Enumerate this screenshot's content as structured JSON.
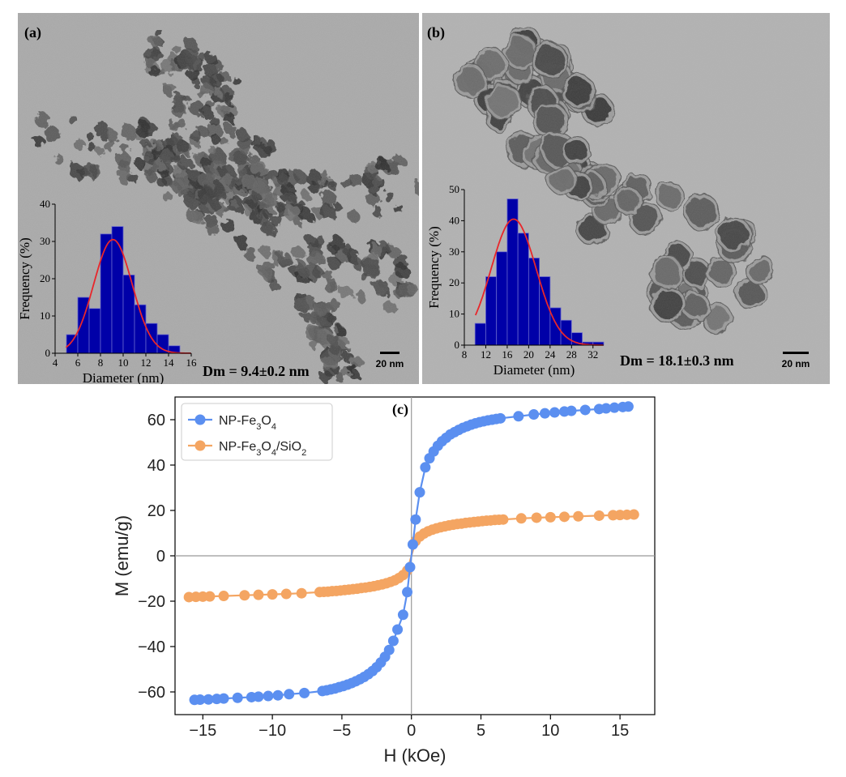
{
  "colors": {
    "series_fe3o4": "#5b8ff0",
    "series_fe3o4_sio2": "#f4a562",
    "histogram_bar": "#0000a8",
    "fit_curve": "#e8262b"
  },
  "panel_a": {
    "label": "(a)",
    "dm_text": "Dm = 9.4±0.2 nm",
    "scale_bar": "20 nm"
  },
  "panel_b": {
    "label": "(b)",
    "dm_text": "Dm = 18.1±0.3 nm",
    "scale_bar": "20 nm"
  },
  "panel_c": {
    "label": "(c)"
  },
  "chart_data": [
    {
      "id": "hist_a",
      "type": "bar",
      "xlabel": "Diameter (nm)",
      "ylabel": "Frequency (%)",
      "xlim": [
        4,
        16
      ],
      "ylim": [
        0,
        40
      ],
      "xticks": [
        4,
        6,
        8,
        10,
        12,
        14,
        16
      ],
      "yticks": [
        0,
        10,
        20,
        30,
        40
      ],
      "bin_width": 1,
      "bin_starts": [
        5,
        6,
        7,
        8,
        9,
        10,
        11,
        12,
        13,
        14
      ],
      "values": [
        5,
        15,
        12,
        32,
        34,
        21,
        13,
        8,
        5,
        2
      ],
      "fit": {
        "type": "gaussian",
        "mean": 9.1,
        "sigma": 1.7,
        "peak": 30.5
      }
    },
    {
      "id": "hist_b",
      "type": "bar",
      "xlabel": "Diameter (nm)",
      "ylabel": "Frequency (%)",
      "xlim": [
        8,
        34
      ],
      "ylim": [
        0,
        50
      ],
      "xticks": [
        8,
        12,
        16,
        20,
        24,
        28,
        32
      ],
      "yticks": [
        0,
        10,
        20,
        30,
        40,
        50
      ],
      "bin_width": 2,
      "bin_starts": [
        10,
        12,
        14,
        16,
        18,
        20,
        22,
        24,
        26,
        28,
        30,
        32
      ],
      "values": [
        7,
        22,
        30,
        47,
        36,
        28,
        22,
        12,
        8,
        4,
        1,
        1
      ],
      "fit": {
        "type": "gaussian",
        "mean": 17.2,
        "sigma": 4.2,
        "peak": 40.5
      }
    },
    {
      "id": "magnetization",
      "type": "line",
      "title": "",
      "xlabel": "H (kOe)",
      "ylabel": "M (emu/g)",
      "xlim": [
        -17,
        17.5
      ],
      "ylim": [
        -70,
        70
      ],
      "xticks": [
        -15,
        -10,
        -5,
        0,
        5,
        10,
        15
      ],
      "yticks": [
        -60,
        -40,
        -20,
        0,
        20,
        40,
        60
      ],
      "legend": "top-left",
      "reference_lines": {
        "x": 0,
        "y": 0
      },
      "series": [
        {
          "name": "NP-Fe₃O₄",
          "name_parts": {
            "base": "NP-Fe",
            "sub1": "3",
            "mid": "O",
            "sub2": "4",
            "tail": ""
          },
          "color": "#5b8ff0",
          "x": [
            -15.6,
            -15.2,
            -14.6,
            -14.0,
            -13.5,
            -12.5,
            -11.5,
            -11.0,
            -10.3,
            -9.6,
            -8.8,
            -7.7,
            -6.4,
            -6.1,
            -5.8,
            -5.5,
            -5.2,
            -4.9,
            -4.6,
            -4.3,
            -4.0,
            -3.7,
            -3.4,
            -3.1,
            -2.8,
            -2.5,
            -2.2,
            -1.9,
            -1.6,
            -1.3,
            -1.0,
            -0.6,
            -0.3,
            -0.1,
            0.1,
            0.3,
            0.6,
            1.0,
            1.3,
            1.6,
            1.9,
            2.2,
            2.5,
            2.8,
            3.1,
            3.4,
            3.7,
            4.0,
            4.3,
            4.6,
            4.9,
            5.2,
            5.5,
            5.8,
            6.1,
            6.4,
            7.7,
            8.8,
            9.6,
            10.3,
            11.0,
            11.5,
            12.5,
            13.5,
            14.0,
            14.6,
            15.2,
            15.6
          ],
          "y": [
            -63.5,
            -63.4,
            -63.3,
            -63.1,
            -62.9,
            -62.6,
            -62.3,
            -62.1,
            -61.8,
            -61.5,
            -61.0,
            -60.5,
            -59.6,
            -59.3,
            -58.9,
            -58.5,
            -57.9,
            -57.4,
            -56.8,
            -56.1,
            -55.3,
            -54.4,
            -53.4,
            -52.2,
            -50.8,
            -49.1,
            -47.0,
            -44.5,
            -41.5,
            -37.5,
            -32.5,
            -26.0,
            -16.0,
            -5.0,
            5.0,
            16.0,
            28.0,
            39.0,
            43.0,
            46.0,
            48.5,
            50.5,
            52.0,
            53.5,
            54.5,
            55.5,
            56.4,
            57.1,
            57.8,
            58.4,
            58.9,
            59.3,
            59.7,
            60.0,
            60.3,
            60.6,
            61.5,
            62.3,
            62.8,
            63.2,
            63.6,
            63.9,
            64.3,
            64.7,
            65.0,
            65.3,
            65.6,
            65.8
          ]
        },
        {
          "name": "NP-Fe₃O₄/SiO₂",
          "name_parts": {
            "base": "NP-Fe",
            "sub1": "3",
            "mid": "O",
            "sub2": "4",
            "tail": "/SiO",
            "sub3": "2"
          },
          "color": "#f4a562",
          "x": [
            -16.0,
            -15.5,
            -15.0,
            -14.5,
            -13.5,
            -12.0,
            -11.0,
            -10.0,
            -9.0,
            -7.9,
            -6.6,
            -6.3,
            -6.0,
            -5.7,
            -5.4,
            -5.1,
            -4.8,
            -4.5,
            -4.2,
            -3.9,
            -3.6,
            -3.3,
            -3.0,
            -2.7,
            -2.4,
            -2.1,
            -1.8,
            -1.5,
            -1.2,
            -0.9,
            -0.6,
            -0.3,
            0.3,
            0.6,
            0.9,
            1.2,
            1.5,
            1.8,
            2.1,
            2.4,
            2.7,
            3.0,
            3.3,
            3.6,
            3.9,
            4.2,
            4.5,
            4.8,
            5.1,
            5.4,
            5.7,
            6.0,
            6.3,
            6.6,
            7.9,
            9.0,
            10.0,
            11.0,
            12.0,
            13.5,
            14.5,
            15.0,
            15.5,
            16.0
          ],
          "y": [
            -18.2,
            -18.1,
            -18.0,
            -17.9,
            -17.7,
            -17.4,
            -17.2,
            -17.0,
            -16.8,
            -16.5,
            -16.0,
            -15.9,
            -15.8,
            -15.6,
            -15.5,
            -15.3,
            -15.1,
            -14.9,
            -14.7,
            -14.5,
            -14.2,
            -14.0,
            -13.7,
            -13.4,
            -13.0,
            -12.6,
            -12.1,
            -11.5,
            -10.8,
            -9.8,
            -8.5,
            -6.5,
            6.5,
            8.5,
            9.8,
            10.8,
            11.5,
            12.1,
            12.6,
            13.0,
            13.4,
            13.7,
            14.0,
            14.2,
            14.5,
            14.7,
            14.9,
            15.1,
            15.3,
            15.5,
            15.6,
            15.8,
            15.9,
            16.0,
            16.5,
            16.8,
            17.0,
            17.2,
            17.4,
            17.7,
            17.9,
            18.0,
            18.1,
            18.2
          ]
        }
      ]
    }
  ]
}
